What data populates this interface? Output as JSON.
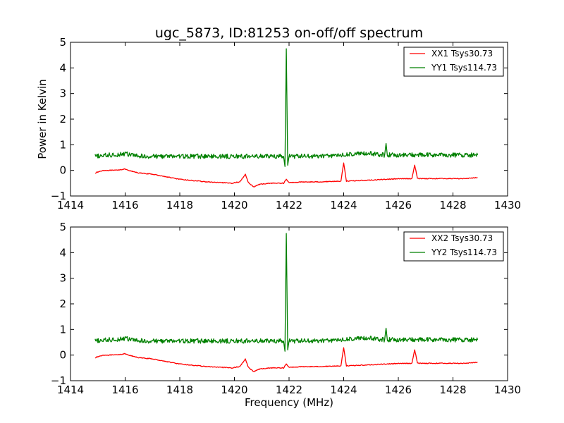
{
  "chart_data": [
    {
      "type": "line",
      "title": "ugc_5873, ID:81253 on-off/off spectrum",
      "xlabel": "",
      "ylabel": "Power in Kelvin",
      "xlim": [
        1414,
        1430
      ],
      "ylim": [
        -1,
        5
      ],
      "xticks": [
        "1414",
        "1416",
        "1418",
        "1420",
        "1422",
        "1424",
        "1426",
        "1428",
        "1430"
      ],
      "yticks": [
        "−1",
        "0",
        "1",
        "2",
        "3",
        "4",
        "5"
      ],
      "grid": false,
      "legend_position": "top-right",
      "series": [
        {
          "name": "XX1 Tsys30.73",
          "color": "#ff0000",
          "x": [
            1414.9,
            1415.2,
            1415.6,
            1416.0,
            1416.1,
            1416.5,
            1417.0,
            1417.5,
            1418.0,
            1418.5,
            1419.0,
            1419.5,
            1419.9,
            1420.2,
            1420.4,
            1420.5,
            1420.6,
            1420.7,
            1420.9,
            1421.3,
            1421.8,
            1421.9,
            1422.0,
            1422.5,
            1423.0,
            1423.9,
            1424.0,
            1424.1,
            1424.5,
            1425.0,
            1425.5,
            1426.0,
            1426.5,
            1426.6,
            1426.7,
            1427.0,
            1427.5,
            1428.0,
            1428.5,
            1428.9
          ],
          "values": [
            -0.1,
            0.0,
            0.0,
            0.05,
            0.0,
            -0.1,
            -0.15,
            -0.25,
            -0.35,
            -0.4,
            -0.45,
            -0.48,
            -0.5,
            -0.45,
            -0.15,
            -0.45,
            -0.55,
            -0.65,
            -0.55,
            -0.5,
            -0.5,
            -0.35,
            -0.48,
            -0.45,
            -0.45,
            -0.42,
            0.3,
            -0.42,
            -0.4,
            -0.38,
            -0.35,
            -0.33,
            -0.32,
            0.22,
            -0.32,
            -0.32,
            -0.32,
            -0.32,
            -0.32,
            -0.28
          ]
        },
        {
          "name": "YY1 Tsys114.73",
          "color": "#008000",
          "x": [
            1414.9,
            1415.5,
            1416.0,
            1416.5,
            1417.0,
            1418.0,
            1419.0,
            1420.0,
            1421.0,
            1421.8,
            1421.85,
            1421.9,
            1421.95,
            1422.0,
            1422.5,
            1423.0,
            1424.0,
            1424.5,
            1425.0,
            1425.5,
            1425.55,
            1425.6,
            1426.0,
            1427.0,
            1428.0,
            1428.9
          ],
          "values": [
            0.55,
            0.6,
            0.65,
            0.55,
            0.55,
            0.55,
            0.55,
            0.55,
            0.55,
            0.55,
            0.15,
            4.75,
            0.2,
            0.55,
            0.55,
            0.55,
            0.6,
            0.65,
            0.65,
            0.6,
            1.05,
            0.6,
            0.6,
            0.6,
            0.6,
            0.6
          ]
        }
      ]
    },
    {
      "type": "line",
      "title": "",
      "xlabel": "Frequency (MHz)",
      "ylabel": "",
      "xlim": [
        1414,
        1430
      ],
      "ylim": [
        -1,
        5
      ],
      "xticks": [
        "1414",
        "1416",
        "1418",
        "1420",
        "1422",
        "1424",
        "1426",
        "1428",
        "1430"
      ],
      "yticks": [
        "−1",
        "0",
        "1",
        "2",
        "3",
        "4",
        "5"
      ],
      "grid": false,
      "legend_position": "top-right",
      "series": [
        {
          "name": "XX2 Tsys30.73",
          "color": "#ff0000",
          "x": [
            1414.9,
            1415.2,
            1415.6,
            1416.0,
            1416.1,
            1416.5,
            1417.0,
            1417.5,
            1418.0,
            1418.5,
            1419.0,
            1419.5,
            1419.9,
            1420.2,
            1420.4,
            1420.5,
            1420.6,
            1420.7,
            1420.9,
            1421.3,
            1421.8,
            1421.9,
            1422.0,
            1422.5,
            1423.0,
            1423.9,
            1424.0,
            1424.1,
            1424.5,
            1425.0,
            1425.5,
            1426.0,
            1426.5,
            1426.6,
            1426.7,
            1427.0,
            1427.5,
            1428.0,
            1428.5,
            1428.9
          ],
          "values": [
            -0.1,
            0.0,
            0.0,
            0.05,
            0.0,
            -0.1,
            -0.15,
            -0.25,
            -0.35,
            -0.4,
            -0.45,
            -0.48,
            -0.5,
            -0.45,
            -0.15,
            -0.45,
            -0.55,
            -0.65,
            -0.55,
            -0.5,
            -0.5,
            -0.35,
            -0.48,
            -0.45,
            -0.45,
            -0.42,
            0.3,
            -0.42,
            -0.4,
            -0.38,
            -0.35,
            -0.33,
            -0.32,
            0.22,
            -0.32,
            -0.32,
            -0.32,
            -0.32,
            -0.32,
            -0.28
          ]
        },
        {
          "name": "YY2 Tsys114.73",
          "color": "#008000",
          "x": [
            1414.9,
            1415.5,
            1416.0,
            1416.5,
            1417.0,
            1418.0,
            1419.0,
            1420.0,
            1421.0,
            1421.8,
            1421.85,
            1421.9,
            1421.95,
            1422.0,
            1422.5,
            1423.0,
            1424.0,
            1424.5,
            1425.0,
            1425.5,
            1425.55,
            1425.6,
            1426.0,
            1427.0,
            1428.0,
            1428.9
          ],
          "values": [
            0.55,
            0.6,
            0.65,
            0.55,
            0.55,
            0.55,
            0.55,
            0.55,
            0.55,
            0.55,
            0.15,
            4.75,
            0.2,
            0.55,
            0.55,
            0.55,
            0.6,
            0.65,
            0.65,
            0.6,
            1.05,
            0.6,
            0.6,
            0.6,
            0.6,
            0.6
          ]
        }
      ]
    }
  ]
}
